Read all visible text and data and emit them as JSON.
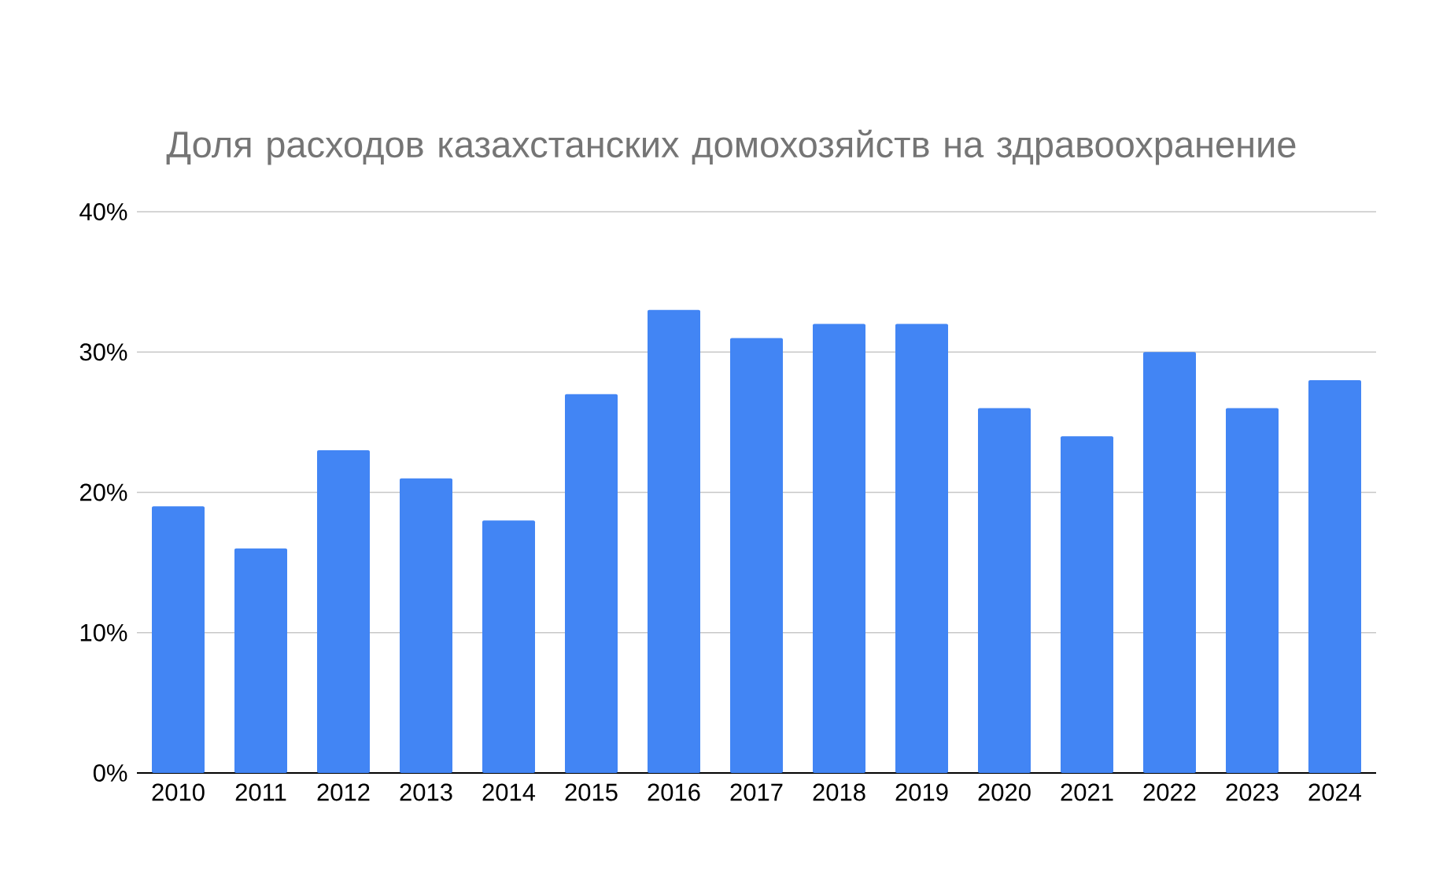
{
  "chart_data": {
    "type": "bar",
    "title": "Доля расходов казахстанских домохозяйств на здравоохранение",
    "categories": [
      "2010",
      "2011",
      "2012",
      "2013",
      "2014",
      "2015",
      "2016",
      "2017",
      "2018",
      "2019",
      "2020",
      "2021",
      "2022",
      "2023",
      "2024"
    ],
    "values": [
      19,
      16,
      23,
      21,
      18,
      27,
      33,
      31,
      32,
      32,
      26,
      24,
      30,
      26,
      28
    ],
    "color": "#4285f4",
    "ylim": [
      0,
      40
    ],
    "yticks": [
      {
        "value": 0,
        "label": "0%"
      },
      {
        "value": 10,
        "label": "10%"
      },
      {
        "value": 20,
        "label": "20%"
      },
      {
        "value": 30,
        "label": "30%"
      },
      {
        "value": 40,
        "label": "40%"
      }
    ],
    "grid": "y"
  }
}
